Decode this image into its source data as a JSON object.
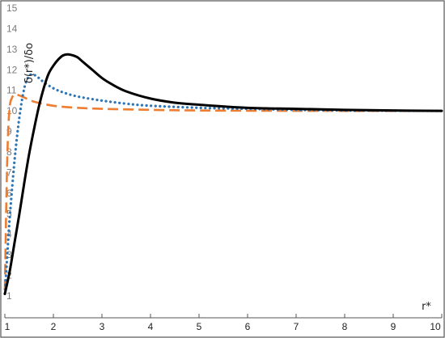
{
  "chart_data": {
    "type": "line",
    "title": "",
    "xlabel": "r*",
    "ylabel": "δ(r*)/δo",
    "xlim": [
      1,
      10
    ],
    "ylim": [
      0.9,
      15
    ],
    "x_ticks": [
      "1",
      "2",
      "3",
      "4",
      "5",
      "6",
      "7",
      "8",
      "9",
      "10"
    ],
    "y_ticks": [
      "1",
      "2",
      "3",
      "4",
      "5",
      "6",
      "7",
      "8",
      "9",
      "10",
      "11",
      "12",
      "13",
      "14",
      "15"
    ],
    "grid": false,
    "legend": "none",
    "series": [
      {
        "style": "solid",
        "color": "#000000",
        "x": [
          1.0,
          1.1,
          1.2,
          1.3,
          1.4,
          1.5,
          1.6,
          1.7,
          1.8,
          1.9,
          2.0,
          2.1,
          2.2,
          2.3,
          2.4,
          2.5,
          2.6,
          2.8,
          3.0,
          3.2,
          3.5,
          4.0,
          4.5,
          5.0,
          6.0,
          7.0,
          8.0,
          9.0,
          10.0
        ],
        "y": [
          1.1,
          2.2,
          3.6,
          5.0,
          6.5,
          7.9,
          9.1,
          10.2,
          11.1,
          11.8,
          12.2,
          12.5,
          12.7,
          12.75,
          12.7,
          12.6,
          12.4,
          12.0,
          11.6,
          11.3,
          10.95,
          10.6,
          10.4,
          10.3,
          10.15,
          10.1,
          10.05,
          10.02,
          10.0
        ]
      },
      {
        "style": "dotted",
        "color": "#2e75b6",
        "x": [
          1.0,
          1.05,
          1.1,
          1.2,
          1.3,
          1.4,
          1.5,
          1.6,
          1.7,
          1.8,
          2.0,
          2.2,
          2.5,
          3.0,
          3.5,
          4.0,
          5.0,
          6.0,
          7.0,
          8.0,
          9.0,
          10.0
        ],
        "y": [
          1.1,
          3.0,
          4.8,
          7.6,
          9.7,
          11.1,
          11.7,
          11.75,
          11.6,
          11.4,
          11.1,
          10.9,
          10.7,
          10.5,
          10.35,
          10.25,
          10.15,
          10.1,
          10.05,
          10.02,
          10.01,
          10.0
        ]
      },
      {
        "style": "dashed",
        "color": "#ed7d31",
        "x": [
          1.0,
          1.03,
          1.06,
          1.1,
          1.15,
          1.2,
          1.3,
          1.4,
          1.6,
          2.0,
          2.5,
          3.0,
          4.0,
          5.0,
          6.0,
          8.0,
          10.0
        ],
        "y": [
          1.3,
          5.5,
          8.5,
          10.2,
          10.65,
          10.8,
          10.75,
          10.65,
          10.45,
          10.25,
          10.15,
          10.1,
          10.05,
          10.02,
          10.01,
          10.0,
          10.0
        ]
      }
    ]
  }
}
